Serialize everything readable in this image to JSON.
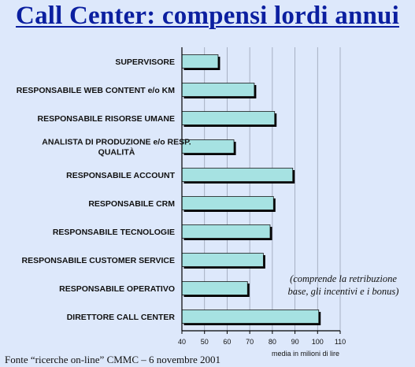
{
  "title": "Call Center: compensi lordi annui",
  "note": "(comprende la retribuzione base, gli incentivi e i bonus)",
  "source": "Fonte “ricerche on-line” CMMC – 6 novembre 2001",
  "colors": {
    "bar": "#a6e2e2",
    "bar_border": "#1a1a1a",
    "shadow": "#000000",
    "title": "#0b1fa0",
    "background": "#dde8fb"
  },
  "chart_data": {
    "type": "bar",
    "orientation": "horizontal",
    "categories": [
      "SUPERVISORE",
      "RESPONSABILE WEB CONTENT e/o KM",
      "RESPONSABILE RISORSE UMANE",
      "ANALISTA DI PRODUZIONE e/o RESP. QUALITÀ",
      "RESPONSABILE ACCOUNT",
      "RESPONSABILE CRM",
      "RESPONSABILE TECNOLOGIE",
      "RESPONSABILE CUSTOMER SERVICE",
      "RESPONSABILE OPERATIVO",
      "DIRETTORE CALL CENTER"
    ],
    "category_lines": [
      [
        "SUPERVISORE"
      ],
      [
        "RESPONSABILE WEB CONTENT e/o KM"
      ],
      [
        "RESPONSABILE RISORSE UMANE"
      ],
      [
        "ANALISTA DI PRODUZIONE e/o RESP.",
        "QUALITÀ"
      ],
      [
        "RESPONSABILE ACCOUNT"
      ],
      [
        "RESPONSABILE CRM"
      ],
      [
        "RESPONSABILE TECNOLOGIE"
      ],
      [
        "RESPONSABILE CUSTOMER SERVICE"
      ],
      [
        "RESPONSABILE OPERATIVO"
      ],
      [
        "DIRETTORE CALL CENTER"
      ]
    ],
    "values": [
      56,
      72,
      81,
      63,
      89,
      80.5,
      79,
      76,
      69,
      100.5
    ],
    "xlabel": "media in milioni di lire",
    "xlim": [
      40,
      110
    ],
    "xticks": [
      40,
      50,
      60,
      70,
      80,
      90,
      100,
      110
    ],
    "grid": "vertical"
  }
}
